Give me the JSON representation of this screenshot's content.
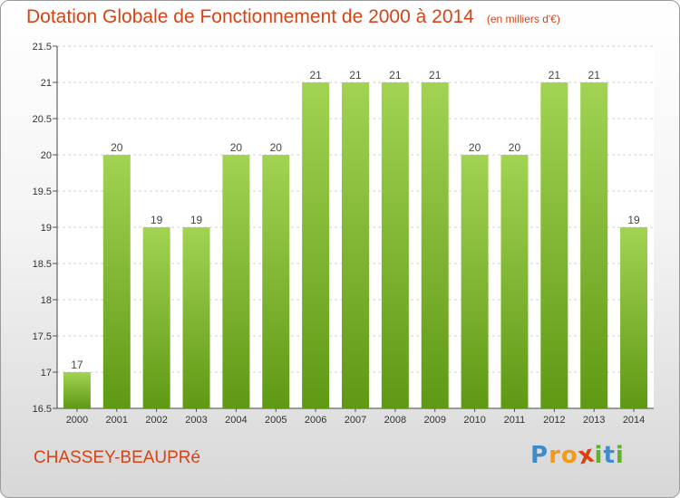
{
  "header": {
    "title": "Dotation Globale de Fonctionnement de 2000 à 2014",
    "unit": "(en milliers d'€)"
  },
  "footer": {
    "place": "CHASSEY-BEAUPRé",
    "logo_letters": [
      "P",
      "r",
      "o",
      "x",
      "i",
      "t",
      "i"
    ]
  },
  "colors": {
    "title": "#d64315",
    "bar_top": "#a2d353",
    "bar_bottom": "#5f9914",
    "logo": [
      "#3f8ccc",
      "#f39a1a",
      "#f39a1a",
      "#d64315",
      "#62b12d",
      "#3f8ccc",
      "#62b12d"
    ]
  },
  "chart_data": {
    "type": "bar",
    "title": "Dotation Globale de Fonctionnement de 2000 à 2014",
    "subtitle": "(en milliers d'€)",
    "categories": [
      "2000",
      "2001",
      "2002",
      "2003",
      "2004",
      "2005",
      "2006",
      "2007",
      "2008",
      "2009",
      "2010",
      "2011",
      "2012",
      "2013",
      "2014"
    ],
    "values": [
      17,
      20,
      19,
      19,
      20,
      20,
      21,
      21,
      21,
      21,
      20,
      20,
      21,
      21,
      19
    ],
    "data_labels": [
      "17",
      "20",
      "19",
      "19",
      "20",
      "20",
      "21",
      "21",
      "21",
      "21",
      "20",
      "20",
      "21",
      "21",
      "19"
    ],
    "yticks": [
      "16.5",
      "17",
      "17.5",
      "18",
      "18.5",
      "19",
      "19.5",
      "20",
      "20.5",
      "21",
      "21.5"
    ],
    "ylim": [
      16.5,
      21.5
    ],
    "xlabel": "",
    "ylabel": "",
    "grid": true,
    "legend": "none"
  }
}
